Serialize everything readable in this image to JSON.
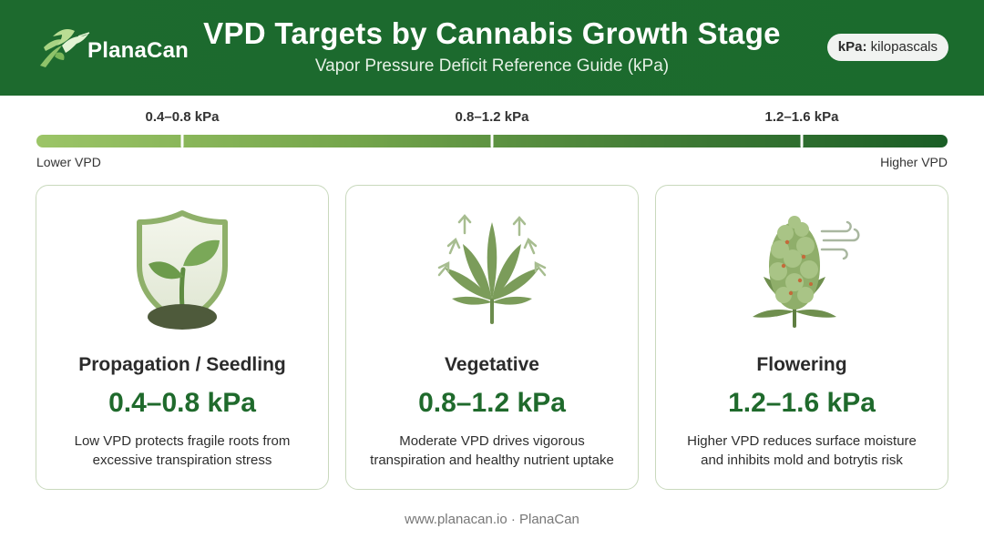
{
  "header": {
    "brand": "PlanaCan",
    "logo_icon": "hummingbird-leaf-icon",
    "title": "VPD Targets by Cannabis Growth Stage",
    "subtitle": "Vapor Pressure Deficit Reference Guide (kPa)",
    "unit_badge_key": "kPa:",
    "unit_badge_value": "kilopascals"
  },
  "scale": {
    "ticks": [
      "0.4–0.8 kPa",
      "0.8–1.2 kPa",
      "1.2–1.6 kPa"
    ],
    "low_label": "Lower VPD",
    "high_label": "Higher VPD",
    "gradient_colors": [
      "#9cc567",
      "#1a5e26"
    ]
  },
  "cards": [
    {
      "icon": "shield-seedling-icon",
      "title": "Propagation / Seedling",
      "range": "0.4–0.8 kPa",
      "desc_line1": "Low VPD protects fragile roots from",
      "desc_line2": "excessive transpiration stress"
    },
    {
      "icon": "cannabis-leaf-icon",
      "title": "Vegetative",
      "range": "0.8–1.2 kPa",
      "desc_line1": "Moderate VPD drives vigorous",
      "desc_line2": "transpiration and healthy nutrient uptake"
    },
    {
      "icon": "flower-bud-icon",
      "title": "Flowering",
      "range": "1.2–1.6 kPa",
      "desc_line1": "Higher VPD reduces surface moisture",
      "desc_line2": "and inhibits mold and botrytis risk"
    }
  ],
  "footer": {
    "text": "www.planacan.io · PlanaCan"
  },
  "colors": {
    "header_green": "#1d6a2e",
    "range_green": "#1f6a2c",
    "card_border": "#c9d9bd"
  }
}
